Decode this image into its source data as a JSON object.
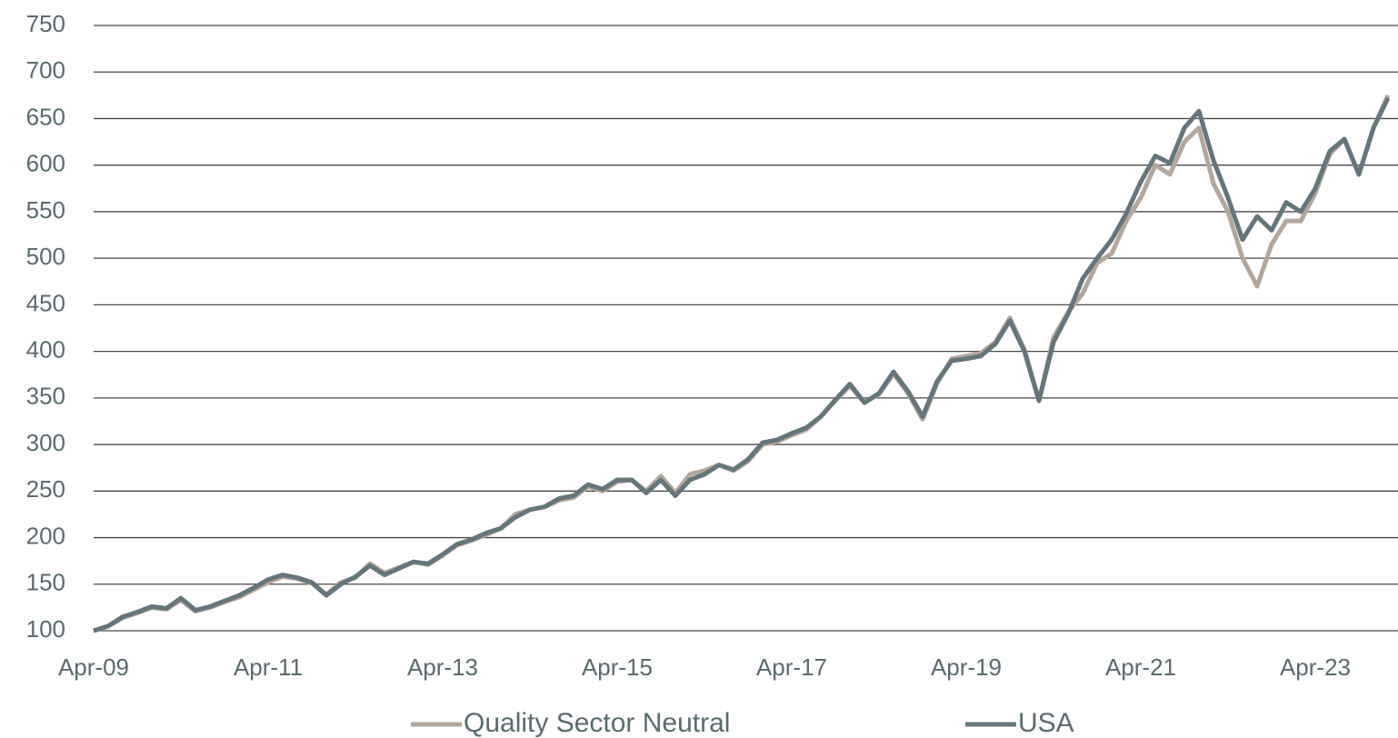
{
  "chart_data": {
    "type": "line",
    "categories": [
      "Apr-09",
      null,
      null,
      null,
      null,
      null,
      null,
      null,
      null,
      null,
      null,
      null,
      "Apr-11",
      null,
      null,
      null,
      null,
      null,
      null,
      null,
      null,
      null,
      null,
      null,
      "Apr-13",
      null,
      null,
      null,
      null,
      null,
      null,
      null,
      null,
      null,
      null,
      null,
      "Apr-15",
      null,
      null,
      null,
      null,
      null,
      null,
      null,
      null,
      null,
      null,
      null,
      "Apr-17",
      null,
      null,
      null,
      null,
      null,
      null,
      null,
      null,
      null,
      null,
      null,
      "Apr-19",
      null,
      null,
      null,
      null,
      null,
      null,
      null,
      null,
      null,
      null,
      null,
      "Apr-21",
      null,
      null,
      null,
      null,
      null,
      null,
      null,
      null,
      null,
      null,
      null,
      "Apr-23",
      null,
      null,
      null,
      null,
      null
    ],
    "series": [
      {
        "name": "Quality Sector Neutral",
        "color": "#b3a79d",
        "values": [
          100,
          105,
          114,
          119,
          125,
          123,
          133,
          121,
          125,
          131,
          136,
          144,
          152,
          158,
          156,
          151,
          139,
          152,
          157,
          172,
          162,
          168,
          174,
          171,
          181,
          192,
          197,
          203,
          210,
          225,
          230,
          233,
          240,
          243,
          255,
          250,
          260,
          262,
          250,
          266,
          248,
          268,
          272,
          278,
          272,
          282,
          300,
          303,
          310,
          316,
          330,
          347,
          363,
          345,
          354,
          376,
          355,
          327,
          366,
          392,
          395,
          398,
          410,
          436,
          402,
          347,
          415,
          442,
          462,
          495,
          505,
          540,
          565,
          600,
          590,
          625,
          640,
          580,
          550,
          500,
          470,
          515,
          540,
          540,
          570,
          612,
          628,
          590,
          640,
          675
        ]
      },
      {
        "name": "USA",
        "color": "#64767b",
        "values": [
          100,
          105,
          115,
          120,
          126,
          124,
          135,
          122,
          126,
          132,
          138,
          146,
          155,
          160,
          157,
          152,
          138,
          150,
          158,
          170,
          160,
          167,
          174,
          172,
          182,
          193,
          198,
          205,
          210,
          222,
          230,
          233,
          242,
          245,
          257,
          252,
          262,
          262,
          248,
          262,
          245,
          262,
          268,
          278,
          273,
          284,
          302,
          305,
          312,
          318,
          330,
          348,
          365,
          345,
          355,
          378,
          357,
          330,
          368,
          390,
          392,
          395,
          408,
          433,
          400,
          347,
          410,
          440,
          478,
          500,
          520,
          548,
          582,
          610,
          602,
          640,
          658,
          605,
          565,
          520,
          545,
          530,
          560,
          550,
          575,
          615,
          628,
          590,
          640,
          672
        ]
      }
    ],
    "ylim": [
      100,
      750
    ],
    "yticks": [
      100,
      150,
      200,
      250,
      300,
      350,
      400,
      450,
      500,
      550,
      600,
      650,
      700,
      750
    ],
    "grid": true
  }
}
